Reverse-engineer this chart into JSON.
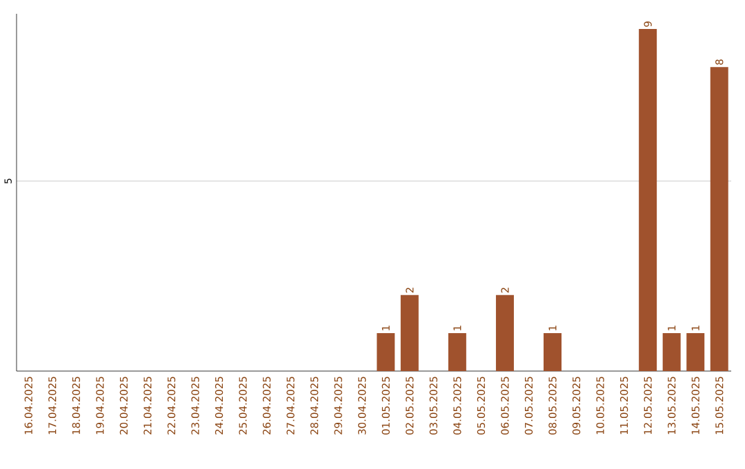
{
  "chart_data": {
    "type": "bar",
    "categories": [
      "16.04.2025",
      "17.04.2025",
      "18.04.2025",
      "19.04.2025",
      "20.04.2025",
      "21.04.2025",
      "22.04.2025",
      "23.04.2025",
      "24.04.2025",
      "25.04.2025",
      "26.04.2025",
      "27.04.2025",
      "28.04.2025",
      "29.04.2025",
      "30.04.2025",
      "01.05.2025",
      "02.05.2025",
      "03.05.2025",
      "04.05.2025",
      "05.05.2025",
      "06.05.2025",
      "07.05.2025",
      "08.05.2025",
      "09.05.2025",
      "10.05.2025",
      "11.05.2025",
      "12.05.2025",
      "13.05.2025",
      "14.05.2025",
      "15.05.2025"
    ],
    "values": [
      null,
      null,
      null,
      null,
      null,
      null,
      null,
      null,
      null,
      null,
      null,
      null,
      null,
      null,
      null,
      1,
      2,
      null,
      1,
      null,
      2,
      null,
      1,
      null,
      null,
      null,
      9,
      1,
      1,
      8
    ],
    "data_labels": true,
    "color": "#a0522d",
    "ylim": [
      0,
      9.4
    ],
    "yticks": [
      5
    ],
    "grid": "y"
  }
}
